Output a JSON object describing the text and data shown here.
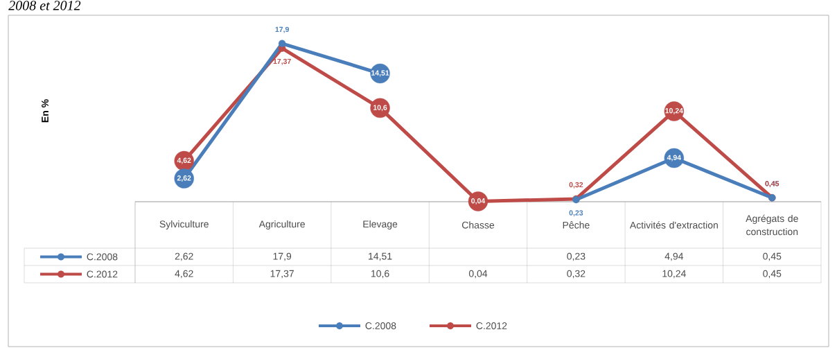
{
  "chart_data": {
    "type": "line",
    "title": "2008 et 2012",
    "annotations": [
      "En %"
    ],
    "categories": [
      "Sylviculture",
      "Agriculture",
      "Elevage",
      "Chasse",
      "Pêche",
      "Activités d'extraction",
      "Agrégats de construction"
    ],
    "series": [
      {
        "name": "C.2008",
        "color": "#4a7ebb",
        "values": [
          2.62,
          17.9,
          14.51,
          null,
          0.23,
          4.94,
          0.45
        ],
        "value_labels": [
          "2,62",
          "17,9",
          "14,51",
          null,
          "0,23",
          "4,94",
          "0,45"
        ]
      },
      {
        "name": "C.2012",
        "color": "#be4b48",
        "values": [
          4.62,
          17.37,
          10.6,
          0.04,
          0.32,
          10.24,
          0.45
        ],
        "value_labels": [
          "4,62",
          "17,37",
          "10,6",
          "0,04",
          "0,32",
          "10,24",
          "0,45"
        ]
      }
    ],
    "marker": "circle",
    "legend": "bottom"
  }
}
